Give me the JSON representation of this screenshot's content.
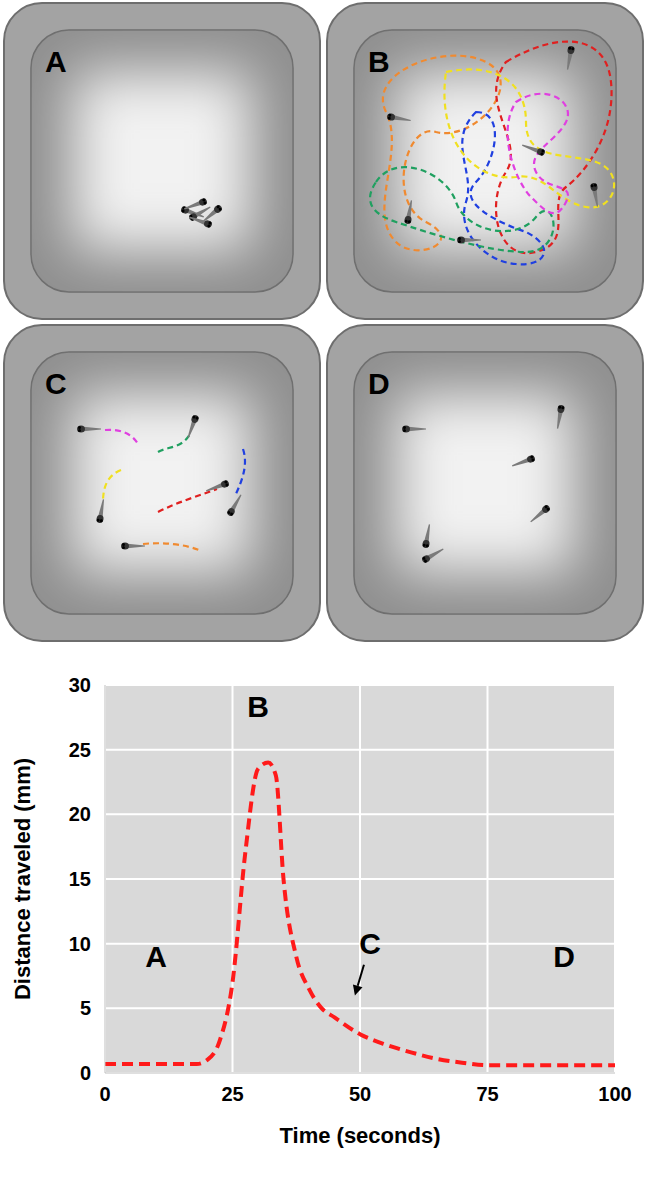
{
  "panels": [
    {
      "label": "A"
    },
    {
      "label": "B"
    },
    {
      "label": "C"
    },
    {
      "label": "D"
    }
  ],
  "chart_data": {
    "type": "line",
    "x_label": "Time (seconds)",
    "y_label": "Distance traveled (mm)",
    "x": [
      0,
      5,
      10,
      15,
      18,
      20,
      22.5,
      25,
      27.5,
      30,
      32,
      33.5,
      35,
      37.5,
      40,
      42.5,
      45,
      50,
      55,
      60,
      65,
      70,
      75,
      80,
      90,
      100
    ],
    "series": [
      {
        "color": "#ff1a1a",
        "line_style": "dashed",
        "values": [
          0.7,
          0.7,
          0.7,
          0.7,
          0.7,
          1,
          2.5,
          7,
          17,
          23.5,
          24,
          23,
          15,
          9,
          6.5,
          5,
          4.3,
          3,
          2.2,
          1.6,
          1.1,
          0.8,
          0.6,
          0.6,
          0.6,
          0.6
        ]
      }
    ],
    "xlim": [
      0,
      100
    ],
    "xticks": [
      0,
      25,
      50,
      75,
      100
    ],
    "ylim": [
      0,
      30
    ],
    "yticks": [
      0,
      5,
      10,
      15,
      20,
      25,
      30
    ],
    "grid": true,
    "annotations": [
      {
        "text": "A",
        "x": 10,
        "y": 9
      },
      {
        "text": "B",
        "x": 30,
        "y": 28.3
      },
      {
        "text": "C",
        "x": 52,
        "y": 10,
        "arrow_to": {
          "x": 49,
          "y": 6
        }
      },
      {
        "text": "D",
        "x": 90,
        "y": 9
      }
    ]
  }
}
